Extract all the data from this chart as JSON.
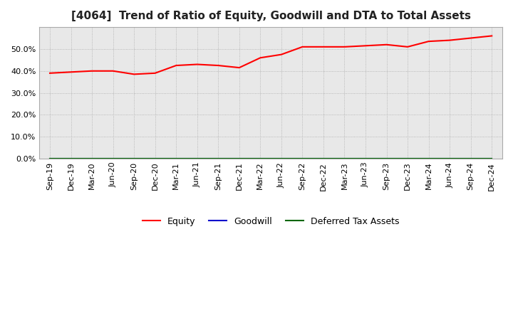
{
  "title": "[4064]  Trend of Ratio of Equity, Goodwill and DTA to Total Assets",
  "x_labels": [
    "Sep-19",
    "Dec-19",
    "Mar-20",
    "Jun-20",
    "Sep-20",
    "Dec-20",
    "Mar-21",
    "Jun-21",
    "Sep-21",
    "Dec-21",
    "Mar-22",
    "Jun-22",
    "Sep-22",
    "Dec-22",
    "Mar-23",
    "Jun-23",
    "Sep-23",
    "Dec-23",
    "Mar-24",
    "Jun-24",
    "Sep-24",
    "Dec-24"
  ],
  "equity": [
    39.0,
    39.5,
    40.0,
    40.0,
    38.5,
    39.0,
    42.5,
    43.0,
    42.5,
    41.5,
    46.0,
    47.5,
    51.0,
    51.0,
    51.0,
    51.5,
    52.0,
    51.0,
    53.5,
    54.0,
    55.0,
    56.0
  ],
  "goodwill": [
    0.0,
    0.0,
    0.0,
    0.0,
    0.0,
    0.0,
    0.0,
    0.0,
    0.0,
    0.0,
    0.0,
    0.0,
    0.0,
    0.0,
    0.0,
    0.0,
    0.0,
    0.0,
    0.0,
    0.0,
    0.0,
    0.0
  ],
  "dta": [
    0.0,
    0.0,
    0.0,
    0.0,
    0.0,
    0.0,
    0.0,
    0.0,
    0.0,
    0.0,
    0.0,
    0.0,
    0.0,
    0.0,
    0.0,
    0.0,
    0.0,
    0.0,
    0.0,
    0.0,
    0.0,
    0.0
  ],
  "equity_color": "#ff0000",
  "goodwill_color": "#0000cc",
  "dta_color": "#006600",
  "ylim": [
    0,
    60
  ],
  "yticks": [
    0.0,
    10.0,
    20.0,
    30.0,
    40.0,
    50.0
  ],
  "bg_color": "#ffffff",
  "plot_bg_color": "#e8e8e8",
  "grid_color": "#aaaaaa",
  "title_fontsize": 11,
  "tick_fontsize": 8,
  "legend_labels": [
    "Equity",
    "Goodwill",
    "Deferred Tax Assets"
  ]
}
